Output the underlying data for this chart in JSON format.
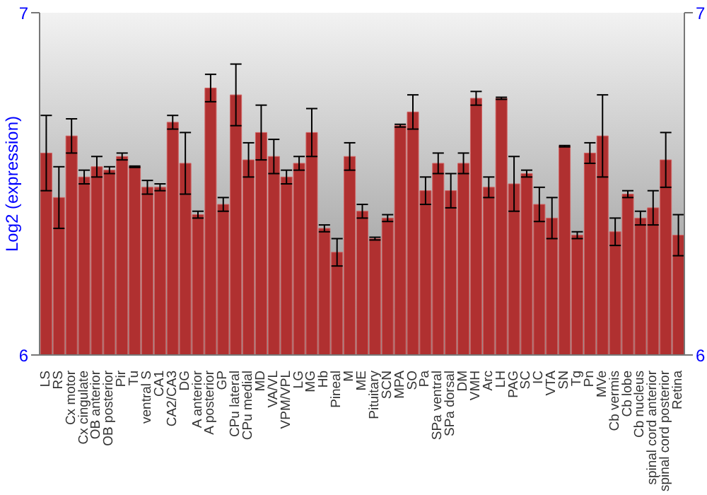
{
  "chart_data": {
    "type": "bar",
    "ylabel": "Log2 (expression)",
    "categories": [
      "LS",
      "RS",
      "Cx motor",
      "Cx cingulate",
      "OB anterior",
      "OB posterior",
      "Pir",
      "Tu",
      "ventral S",
      "CA1",
      "CA2/CA3",
      "DG",
      "A anterior",
      "A posterior",
      "GP",
      "CPu lateral",
      "CPu medial",
      "MD",
      "VA/VL",
      "VPM/VPL",
      "LG",
      "MG",
      "Hb",
      "Pineal",
      "M",
      "ME",
      "Pituitary",
      "SCN",
      "MPA",
      "SO",
      "Pa",
      "SPa ventral",
      "SPa dorsal",
      "DM",
      "VMH",
      "Arc",
      "LH",
      "PAG",
      "SC",
      "IC",
      "VTA",
      "SN",
      "Tg",
      "Pn",
      "MVe",
      "Cb vermis",
      "Cb lobe",
      "Cb nucleus",
      "spinal cord anterior",
      "spinal cord posterior",
      "Retina"
    ],
    "values": [
      6.59,
      6.46,
      6.64,
      6.52,
      6.55,
      6.54,
      6.58,
      6.55,
      6.49,
      6.49,
      6.68,
      6.56,
      6.41,
      6.78,
      6.44,
      6.76,
      6.57,
      6.65,
      6.58,
      6.52,
      6.56,
      6.65,
      6.37,
      6.3,
      6.58,
      6.42,
      6.34,
      6.4,
      6.67,
      6.71,
      6.48,
      6.56,
      6.48,
      6.56,
      6.75,
      6.49,
      6.75,
      6.5,
      6.53,
      6.44,
      6.4,
      6.61,
      6.35,
      6.59,
      6.64,
      6.36,
      6.47,
      6.4,
      6.43,
      6.57,
      6.35
    ],
    "errors": [
      0.11,
      0.09,
      0.05,
      0.02,
      0.03,
      0.01,
      0.01,
      0.002,
      0.02,
      0.01,
      0.02,
      0.09,
      0.01,
      0.04,
      0.02,
      0.09,
      0.05,
      0.08,
      0.05,
      0.02,
      0.02,
      0.07,
      0.01,
      0.04,
      0.04,
      0.02,
      0.004,
      0.01,
      0.004,
      0.05,
      0.04,
      0.03,
      0.05,
      0.03,
      0.02,
      0.03,
      0.003,
      0.08,
      0.01,
      0.05,
      0.06,
      0.002,
      0.01,
      0.03,
      0.12,
      0.04,
      0.01,
      0.02,
      0.05,
      0.08,
      0.06
    ],
    "color": "#b03030",
    "ylim": [
      6,
      7
    ],
    "yticks": [
      6,
      7
    ],
    "y2lim": [
      6,
      7
    ],
    "y2ticks": [
      6,
      7
    ],
    "grid": false,
    "legend": false
  }
}
